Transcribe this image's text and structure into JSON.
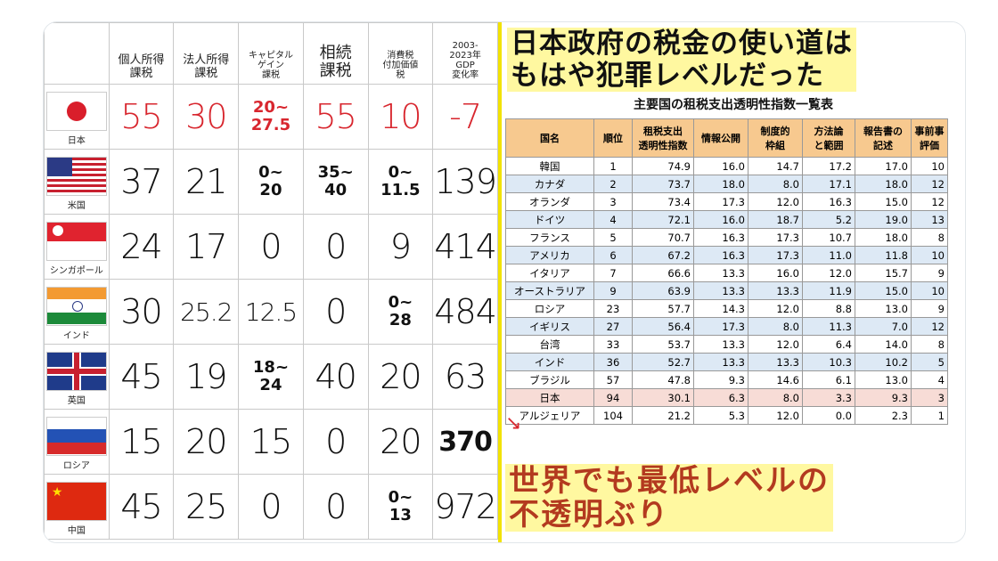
{
  "left_table": {
    "headers": [
      "個人所得\n課税",
      "法人所得\n課税",
      "キャピタル\nゲイン\n課税",
      "相続\n課税",
      "消費税\n付加価値\n税",
      "2003-\n2023年\nGDP\n変化率"
    ],
    "rows": [
      {
        "country": "日本",
        "flag": "japan-flag",
        "values": [
          "55",
          "30",
          "20~\n27.5",
          "55",
          "10",
          "-7"
        ],
        "red": true
      },
      {
        "country": "米国",
        "flag": "usa-flag",
        "values": [
          "37",
          "21",
          "0~\n20",
          "35~\n40",
          "0~\n11.5",
          "139"
        ]
      },
      {
        "country": "シンガポール",
        "flag": "singapore-flag",
        "values": [
          "24",
          "17",
          "0",
          "0",
          "9",
          "414"
        ]
      },
      {
        "country": "インド",
        "flag": "india-flag",
        "values": [
          "30",
          "25.2",
          "12.5",
          "0",
          "0~\n28",
          "484"
        ]
      },
      {
        "country": "英国",
        "flag": "uk-flag",
        "values": [
          "45",
          "19",
          "18~\n24",
          "40",
          "20",
          "63"
        ]
      },
      {
        "country": "ロシア",
        "flag": "russia-flag",
        "values": [
          "15",
          "20",
          "15",
          "0",
          "20",
          "370"
        ]
      },
      {
        "country": "中国",
        "flag": "china-flag",
        "values": [
          "45",
          "25",
          "0",
          "0",
          "0~\n13",
          "972"
        ]
      }
    ]
  },
  "right_panel": {
    "headline": "日本政府の税金の使い道は\nもはや犯罪レベルだった",
    "table_title": "主要国の租税支出透明性指数一覧表",
    "columns": [
      "国名",
      "順位",
      "租税支出\n透明性指数",
      "情報公開",
      "制度的\n枠組",
      "方法論\nと範囲",
      "報告書の\n記述",
      "事前事\n評価"
    ],
    "rows": [
      [
        "韓国",
        "1",
        "74.9",
        "16.0",
        "14.7",
        "17.2",
        "17.0",
        "10"
      ],
      [
        "カナダ",
        "2",
        "73.7",
        "18.0",
        "8.0",
        "17.1",
        "18.0",
        "12"
      ],
      [
        "オランダ",
        "3",
        "73.4",
        "17.3",
        "12.0",
        "16.3",
        "15.0",
        "12"
      ],
      [
        "ドイツ",
        "4",
        "72.1",
        "16.0",
        "18.7",
        "5.2",
        "19.0",
        "13"
      ],
      [
        "フランス",
        "5",
        "70.7",
        "16.3",
        "17.3",
        "10.7",
        "18.0",
        "8"
      ],
      [
        "アメリカ",
        "6",
        "67.2",
        "16.3",
        "17.3",
        "11.0",
        "11.8",
        "10"
      ],
      [
        "イタリア",
        "7",
        "66.6",
        "13.3",
        "16.0",
        "12.0",
        "15.7",
        "9"
      ],
      [
        "オーストラリア",
        "9",
        "63.9",
        "13.3",
        "13.3",
        "11.9",
        "15.0",
        "10"
      ],
      [
        "ロシア",
        "23",
        "57.7",
        "14.3",
        "12.0",
        "8.8",
        "13.0",
        "9"
      ],
      [
        "イギリス",
        "27",
        "56.4",
        "17.3",
        "8.0",
        "11.3",
        "7.0",
        "12"
      ],
      [
        "台湾",
        "33",
        "53.7",
        "13.3",
        "12.0",
        "6.4",
        "14.0",
        "8"
      ],
      [
        "インド",
        "36",
        "52.7",
        "13.3",
        "13.3",
        "10.3",
        "10.2",
        "5"
      ],
      [
        "ブラジル",
        "57",
        "47.8",
        "9.3",
        "14.6",
        "6.1",
        "13.0",
        "4"
      ],
      [
        "日本",
        "94",
        "30.1",
        "6.3",
        "8.0",
        "3.3",
        "9.3",
        "3"
      ],
      [
        "アルジェリア",
        "104",
        "21.2",
        "5.3",
        "12.0",
        "0.0",
        "2.3",
        "1"
      ]
    ],
    "footer": "世界でも最低レベルの\n不透明ぶり"
  }
}
